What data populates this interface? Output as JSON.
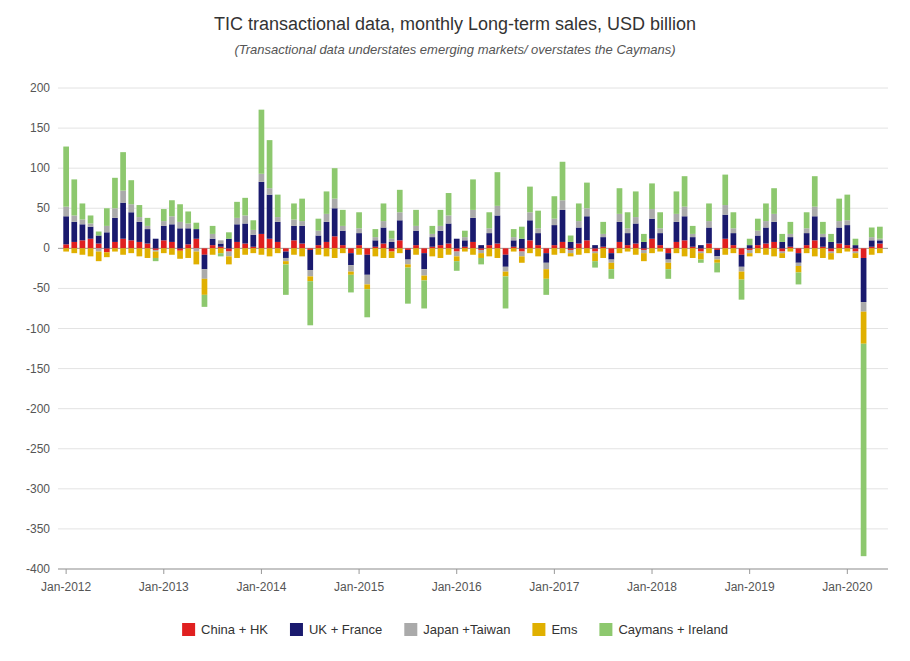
{
  "chart_data": {
    "type": "bar",
    "title": "TIC transactional data, monthly Long-term sales, USD billion",
    "subtitle": "(Transactional data understates emerging markets/ overstates the Caymans)",
    "stacked": true,
    "grid": true,
    "legend": "bottom",
    "ylim": [
      -400,
      210
    ],
    "yticks": [
      200,
      150,
      100,
      50,
      0,
      -50,
      -100,
      -150,
      -200,
      -250,
      -300,
      -350,
      -400
    ],
    "categories": [
      "Jan-2012",
      null,
      null,
      null,
      null,
      null,
      null,
      null,
      null,
      null,
      null,
      null,
      "Jan-2013",
      null,
      null,
      null,
      null,
      null,
      null,
      null,
      null,
      null,
      null,
      null,
      "Jan-2014",
      null,
      null,
      null,
      null,
      null,
      null,
      null,
      null,
      null,
      null,
      null,
      "Jan-2015",
      null,
      null,
      null,
      null,
      null,
      null,
      null,
      null,
      null,
      null,
      null,
      "Jan-2016",
      null,
      null,
      null,
      null,
      null,
      null,
      null,
      null,
      null,
      null,
      null,
      "Jan-2017",
      null,
      null,
      null,
      null,
      null,
      null,
      null,
      null,
      null,
      null,
      null,
      "Jan-2018",
      null,
      null,
      null,
      null,
      null,
      null,
      null,
      null,
      null,
      null,
      null,
      "Jan-2019",
      null,
      null,
      null,
      null,
      null,
      null,
      null,
      null,
      null,
      null,
      null,
      "Jan-2020",
      null,
      null,
      null,
      null
    ],
    "series": [
      {
        "name": "China + HK",
        "color": "#e02020",
        "values": [
          5,
          8,
          10,
          12,
          6,
          -5,
          8,
          12,
          10,
          8,
          6,
          -2,
          10,
          8,
          -3,
          5,
          12,
          -8,
          4,
          2,
          -4,
          8,
          6,
          2,
          18,
          12,
          8,
          -4,
          10,
          6,
          -2,
          4,
          8,
          15,
          4,
          -6,
          4,
          -8,
          2,
          6,
          -4,
          10,
          -2,
          4,
          -6,
          2,
          4,
          6,
          -4,
          2,
          8,
          -2,
          4,
          6,
          -8,
          2,
          -4,
          10,
          4,
          -6,
          4,
          8,
          -2,
          6,
          10,
          -4,
          2,
          -6,
          8,
          4,
          6,
          -2,
          12,
          4,
          -6,
          8,
          10,
          2,
          -4,
          6,
          -2,
          12,
          4,
          -8,
          -2,
          4,
          6,
          8,
          -4,
          2,
          -6,
          4,
          10,
          2,
          -4,
          6,
          4,
          -4,
          -12,
          2,
          6
        ]
      },
      {
        "name": "UK + France",
        "color": "#1a1a6e",
        "values": [
          35,
          25,
          20,
          15,
          10,
          20,
          30,
          45,
          35,
          25,
          18,
          12,
          18,
          22,
          25,
          20,
          12,
          -18,
          8,
          4,
          12,
          22,
          25,
          15,
          65,
          55,
          25,
          -8,
          18,
          22,
          -25,
          12,
          25,
          35,
          18,
          -15,
          15,
          -25,
          8,
          20,
          8,
          25,
          -12,
          18,
          -20,
          12,
          18,
          25,
          12,
          8,
          30,
          4,
          15,
          35,
          -15,
          8,
          12,
          25,
          15,
          -12,
          25,
          40,
          8,
          20,
          30,
          4,
          12,
          -8,
          25,
          15,
          25,
          8,
          25,
          15,
          -8,
          25,
          30,
          12,
          4,
          20,
          -8,
          30,
          15,
          -15,
          4,
          12,
          20,
          25,
          8,
          12,
          -12,
          15,
          30,
          12,
          8,
          20,
          25,
          4,
          -55,
          8,
          4
        ]
      },
      {
        "name": "Japan +Taiwan",
        "color": "#aaaaaa",
        "values": [
          12,
          8,
          6,
          4,
          -4,
          8,
          12,
          15,
          10,
          6,
          4,
          -2,
          6,
          10,
          8,
          6,
          -4,
          -12,
          6,
          4,
          -6,
          8,
          10,
          6,
          10,
          8,
          6,
          -4,
          8,
          6,
          -8,
          6,
          10,
          12,
          6,
          -8,
          6,
          -12,
          4,
          8,
          4,
          10,
          -6,
          6,
          -8,
          4,
          6,
          10,
          -6,
          4,
          10,
          -4,
          6,
          12,
          -6,
          4,
          -6,
          10,
          6,
          -8,
          8,
          12,
          -4,
          8,
          10,
          -2,
          4,
          -4,
          10,
          6,
          8,
          -4,
          12,
          6,
          -4,
          10,
          12,
          4,
          -2,
          8,
          -4,
          12,
          6,
          -6,
          -4,
          6,
          8,
          10,
          -2,
          4,
          -4,
          6,
          12,
          4,
          -2,
          8,
          6,
          -2,
          -12,
          4,
          2
        ]
      },
      {
        "name": "Ems",
        "color": "#e0b000",
        "values": [
          -4,
          -6,
          -8,
          -10,
          -12,
          -6,
          -4,
          -8,
          -6,
          -10,
          -12,
          -8,
          -6,
          -8,
          -10,
          -12,
          -16,
          -20,
          -8,
          -6,
          -10,
          -12,
          -8,
          -6,
          -8,
          -10,
          -6,
          -4,
          -8,
          -10,
          -6,
          -8,
          -10,
          -12,
          -6,
          -4,
          -8,
          -6,
          -10,
          -12,
          -8,
          -6,
          -4,
          -8,
          -6,
          -10,
          -12,
          -8,
          -6,
          -4,
          -8,
          -6,
          -10,
          -12,
          -6,
          -4,
          -8,
          -6,
          -10,
          -12,
          -8,
          -6,
          -4,
          -8,
          -6,
          -10,
          -12,
          -8,
          -6,
          -4,
          -8,
          -10,
          -6,
          -4,
          -8,
          -6,
          -10,
          -12,
          -8,
          -6,
          -4,
          -8,
          -6,
          -10,
          -4,
          -6,
          -8,
          -10,
          -6,
          -4,
          -8,
          -6,
          -10,
          -12,
          -8,
          -6,
          -4,
          -6,
          -40,
          -8,
          -6
        ]
      },
      {
        "name": "Caymans + Ireland",
        "color": "#8dc86e",
        "values": [
          75,
          45,
          20,
          10,
          5,
          22,
          38,
          48,
          30,
          15,
          10,
          -4,
          15,
          20,
          22,
          15,
          8,
          -15,
          10,
          -4,
          8,
          20,
          22,
          12,
          80,
          60,
          28,
          -38,
          20,
          28,
          -55,
          15,
          28,
          38,
          20,
          -22,
          20,
          -35,
          10,
          22,
          10,
          28,
          -45,
          20,
          -35,
          10,
          20,
          28,
          -12,
          8,
          38,
          -8,
          20,
          42,
          -40,
          10,
          15,
          32,
          22,
          -20,
          28,
          48,
          8,
          22,
          32,
          -8,
          15,
          -12,
          32,
          20,
          32,
          10,
          32,
          20,
          -12,
          28,
          38,
          10,
          -4,
          22,
          -12,
          38,
          20,
          -25,
          8,
          15,
          22,
          32,
          10,
          15,
          -15,
          20,
          38,
          15,
          10,
          28,
          32,
          8,
          -265,
          12,
          15
        ]
      }
    ]
  }
}
